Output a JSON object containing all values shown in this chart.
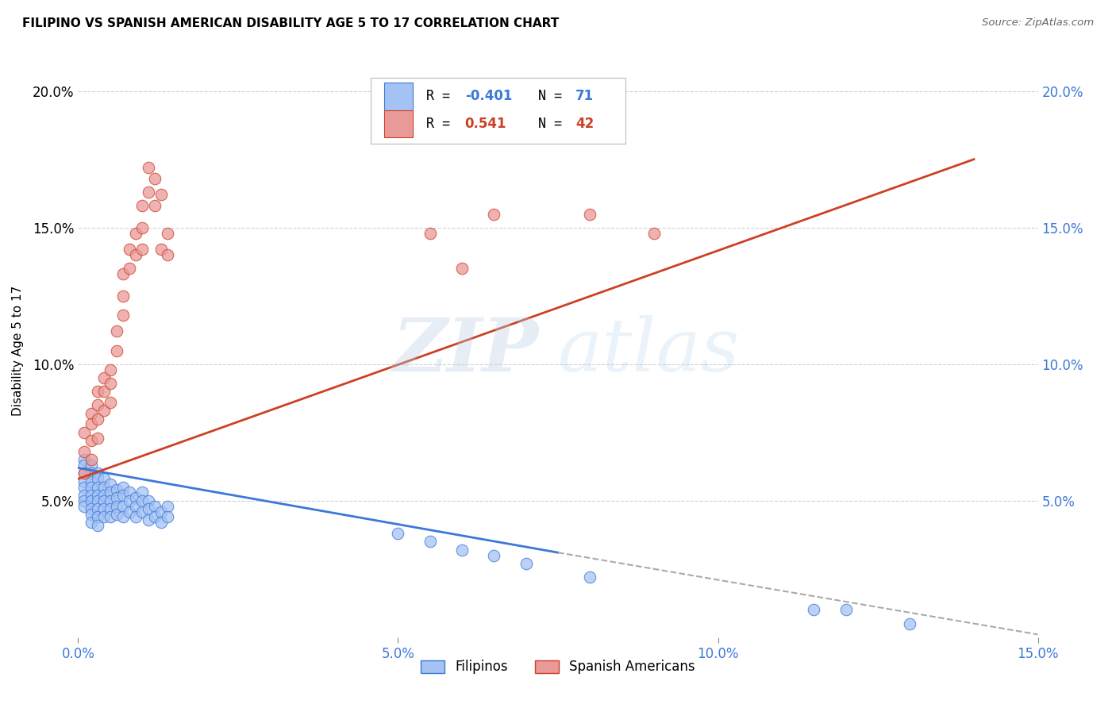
{
  "title": "FILIPINO VS SPANISH AMERICAN DISABILITY AGE 5 TO 17 CORRELATION CHART",
  "source": "Source: ZipAtlas.com",
  "ylabel": "Disability Age 5 to 17",
  "xlim": [
    0,
    0.15
  ],
  "ylim": [
    0,
    0.21
  ],
  "xtick_labels": [
    "0.0%",
    "5.0%",
    "10.0%",
    "15.0%"
  ],
  "xtick_vals": [
    0.0,
    0.05,
    0.1,
    0.15
  ],
  "ytick_labels": [
    "5.0%",
    "10.0%",
    "15.0%",
    "20.0%"
  ],
  "ytick_vals": [
    0.05,
    0.1,
    0.15,
    0.2
  ],
  "blue_fill": "#a4c2f4",
  "blue_edge": "#3c78d8",
  "pink_fill": "#ea9999",
  "pink_edge": "#cc4125",
  "blue_line_color": "#3c78d8",
  "pink_line_color": "#cc4125",
  "dash_color": "#aaaaaa",
  "r_blue": -0.401,
  "n_blue": 71,
  "r_pink": 0.541,
  "n_pink": 42,
  "legend_labels": [
    "Filipinos",
    "Spanish Americans"
  ],
  "watermark_zip": "ZIP",
  "watermark_atlas": "atlas",
  "blue_x": [
    0.001,
    0.001,
    0.001,
    0.001,
    0.001,
    0.001,
    0.001,
    0.001,
    0.002,
    0.002,
    0.002,
    0.002,
    0.002,
    0.002,
    0.002,
    0.002,
    0.002,
    0.003,
    0.003,
    0.003,
    0.003,
    0.003,
    0.003,
    0.003,
    0.003,
    0.004,
    0.004,
    0.004,
    0.004,
    0.004,
    0.004,
    0.005,
    0.005,
    0.005,
    0.005,
    0.005,
    0.006,
    0.006,
    0.006,
    0.006,
    0.007,
    0.007,
    0.007,
    0.007,
    0.008,
    0.008,
    0.008,
    0.009,
    0.009,
    0.009,
    0.01,
    0.01,
    0.01,
    0.011,
    0.011,
    0.011,
    0.012,
    0.012,
    0.013,
    0.013,
    0.014,
    0.014,
    0.05,
    0.055,
    0.06,
    0.065,
    0.07,
    0.08,
    0.115,
    0.12,
    0.13
  ],
  "blue_y": [
    0.065,
    0.063,
    0.06,
    0.057,
    0.055,
    0.052,
    0.05,
    0.048,
    0.063,
    0.06,
    0.057,
    0.055,
    0.052,
    0.05,
    0.047,
    0.045,
    0.042,
    0.06,
    0.058,
    0.055,
    0.052,
    0.05,
    0.047,
    0.044,
    0.041,
    0.058,
    0.055,
    0.052,
    0.05,
    0.047,
    0.044,
    0.056,
    0.053,
    0.05,
    0.047,
    0.044,
    0.054,
    0.051,
    0.048,
    0.045,
    0.055,
    0.052,
    0.048,
    0.044,
    0.053,
    0.05,
    0.046,
    0.051,
    0.048,
    0.044,
    0.053,
    0.05,
    0.046,
    0.05,
    0.047,
    0.043,
    0.048,
    0.044,
    0.046,
    0.042,
    0.048,
    0.044,
    0.038,
    0.035,
    0.032,
    0.03,
    0.027,
    0.022,
    0.01,
    0.01,
    0.005
  ],
  "pink_x": [
    0.001,
    0.001,
    0.001,
    0.002,
    0.002,
    0.002,
    0.002,
    0.003,
    0.003,
    0.003,
    0.003,
    0.004,
    0.004,
    0.004,
    0.005,
    0.005,
    0.005,
    0.006,
    0.006,
    0.007,
    0.007,
    0.007,
    0.008,
    0.008,
    0.009,
    0.009,
    0.01,
    0.01,
    0.01,
    0.011,
    0.011,
    0.012,
    0.012,
    0.013,
    0.013,
    0.014,
    0.014,
    0.055,
    0.06,
    0.065,
    0.08,
    0.09
  ],
  "pink_y": [
    0.075,
    0.068,
    0.06,
    0.082,
    0.078,
    0.072,
    0.065,
    0.09,
    0.085,
    0.08,
    0.073,
    0.095,
    0.09,
    0.083,
    0.098,
    0.093,
    0.086,
    0.112,
    0.105,
    0.133,
    0.125,
    0.118,
    0.142,
    0.135,
    0.148,
    0.14,
    0.158,
    0.15,
    0.142,
    0.172,
    0.163,
    0.158,
    0.168,
    0.142,
    0.162,
    0.148,
    0.14,
    0.148,
    0.135,
    0.155,
    0.155,
    0.148
  ],
  "blue_line_x0": 0.0,
  "blue_line_x1": 0.075,
  "blue_line_xd": 0.15,
  "blue_line_y0": 0.062,
  "blue_line_y1": 0.031,
  "blue_line_yd": 0.001,
  "pink_line_x0": 0.0,
  "pink_line_x1": 0.14,
  "pink_line_y0": 0.058,
  "pink_line_y1": 0.175
}
